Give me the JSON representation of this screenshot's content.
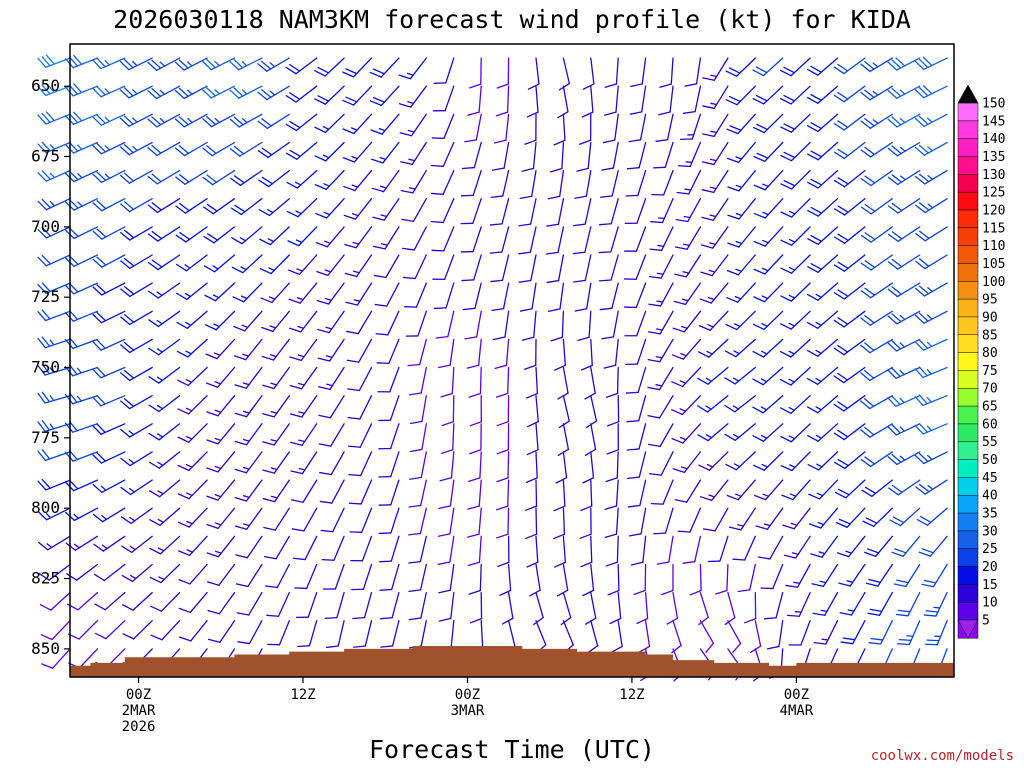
{
  "chart_data": {
    "type": "wind-barb",
    "title": "2026030118 NAM3KM forecast wind profile (kt) for KIDA",
    "xlabel": "Forecast Time (UTC)",
    "ylabel": "",
    "ylim": [
      860,
      635
    ],
    "xlim_hours": [
      -5,
      59.5
    ],
    "x_ticks": [
      {
        "hour": 0,
        "lines": [
          "00Z",
          "2MAR",
          "2026"
        ]
      },
      {
        "hour": 12,
        "lines": [
          "12Z"
        ]
      },
      {
        "hour": 24,
        "lines": [
          "00Z",
          "3MAR"
        ]
      },
      {
        "hour": 36,
        "lines": [
          "12Z"
        ]
      },
      {
        "hour": 48,
        "lines": [
          "00Z",
          "4MAR"
        ]
      }
    ],
    "y_ticks": [
      650,
      675,
      700,
      725,
      750,
      775,
      800,
      825,
      850
    ],
    "levels_mb": [
      640,
      650,
      660,
      670,
      680,
      690,
      700,
      710,
      720,
      730,
      740,
      750,
      760,
      770,
      780,
      790,
      800,
      810,
      820,
      830,
      840,
      850
    ],
    "hours": [
      -5,
      -3,
      -1,
      1,
      3,
      5,
      7,
      9,
      11,
      13,
      15,
      17,
      19,
      21,
      23,
      25,
      27,
      29,
      31,
      33,
      35,
      37,
      39,
      41,
      43,
      45,
      47,
      49,
      51,
      53,
      55,
      57,
      59
    ],
    "wind_key_points": [
      {
        "hour": -5,
        "level": 640,
        "dir": 250,
        "spd": 32
      },
      {
        "hour": 8,
        "level": 640,
        "dir": 245,
        "spd": 28
      },
      {
        "hour": 19,
        "level": 640,
        "dir": 225,
        "spd": 20
      },
      {
        "hour": 25,
        "level": 640,
        "dir": 170,
        "spd": 8
      },
      {
        "hour": 31,
        "level": 640,
        "dir": 160,
        "spd": 12
      },
      {
        "hour": 40,
        "level": 640,
        "dir": 175,
        "spd": 12
      },
      {
        "hour": 46,
        "level": 640,
        "dir": 230,
        "spd": 22
      },
      {
        "hour": 59,
        "level": 640,
        "dir": 245,
        "spd": 30
      },
      {
        "hour": -5,
        "level": 760,
        "dir": 255,
        "spd": 25
      },
      {
        "hour": 10,
        "level": 760,
        "dir": 215,
        "spd": 14
      },
      {
        "hour": 24,
        "level": 760,
        "dir": 175,
        "spd": 8
      },
      {
        "hour": 32,
        "level": 760,
        "dir": 160,
        "spd": 12
      },
      {
        "hour": 44,
        "level": 760,
        "dir": 235,
        "spd": 18
      },
      {
        "hour": 59,
        "level": 760,
        "dir": 250,
        "spd": 28
      },
      {
        "hour": -5,
        "level": 850,
        "dir": 220,
        "spd": 7
      },
      {
        "hour": 15,
        "level": 850,
        "dir": 190,
        "spd": 10
      },
      {
        "hour": 30,
        "level": 850,
        "dir": 150,
        "spd": 12
      },
      {
        "hour": 42,
        "level": 850,
        "dir": 135,
        "spd": 10
      },
      {
        "hour": 59,
        "level": 850,
        "dir": 200,
        "spd": 25
      }
    ],
    "terrain_pressure": [
      {
        "hour": -5,
        "level": 856
      },
      {
        "hour": -3.5,
        "level": 855
      },
      {
        "hour": -1,
        "level": 853
      },
      {
        "hour": 5,
        "level": 853
      },
      {
        "hour": 7,
        "level": 852
      },
      {
        "hour": 11,
        "level": 851
      },
      {
        "hour": 15,
        "level": 850
      },
      {
        "hour": 20,
        "level": 849
      },
      {
        "hour": 25,
        "level": 849
      },
      {
        "hour": 28,
        "level": 850
      },
      {
        "hour": 32,
        "level": 851
      },
      {
        "hour": 37,
        "level": 852
      },
      {
        "hour": 39,
        "level": 854
      },
      {
        "hour": 42,
        "level": 855
      },
      {
        "hour": 46,
        "level": 856
      },
      {
        "hour": 48,
        "level": 855
      },
      {
        "hour": 59.5,
        "level": 855
      }
    ],
    "colorbar": {
      "labels": [
        150,
        145,
        140,
        135,
        130,
        125,
        120,
        115,
        110,
        105,
        100,
        95,
        90,
        85,
        80,
        75,
        70,
        65,
        60,
        55,
        50,
        45,
        40,
        35,
        30,
        25,
        20,
        15,
        10,
        5
      ],
      "colors": [
        "#ff6dff",
        "#ff3ae0",
        "#ff1fc1",
        "#ff0e8e",
        "#f5004e",
        "#ff0b11",
        "#ff2b07",
        "#f53e05",
        "#f25a09",
        "#f1730d",
        "#f58e12",
        "#fab319",
        "#fec71e",
        "#ffdf23",
        "#fff71c",
        "#d8fe22",
        "#98fd2c",
        "#49f24f",
        "#2ceb64",
        "#2ef090",
        "#00f0c2",
        "#00d0e9",
        "#0aa5f8",
        "#127ff3",
        "#1261e8",
        "#0a41e5",
        "#040fe7",
        "#2d00d9",
        "#5b00e8",
        "#8b05f1"
      ],
      "cap_top": "#000000",
      "cap_bottom": "#a020f0"
    },
    "credit": "coolwx.com/models"
  }
}
